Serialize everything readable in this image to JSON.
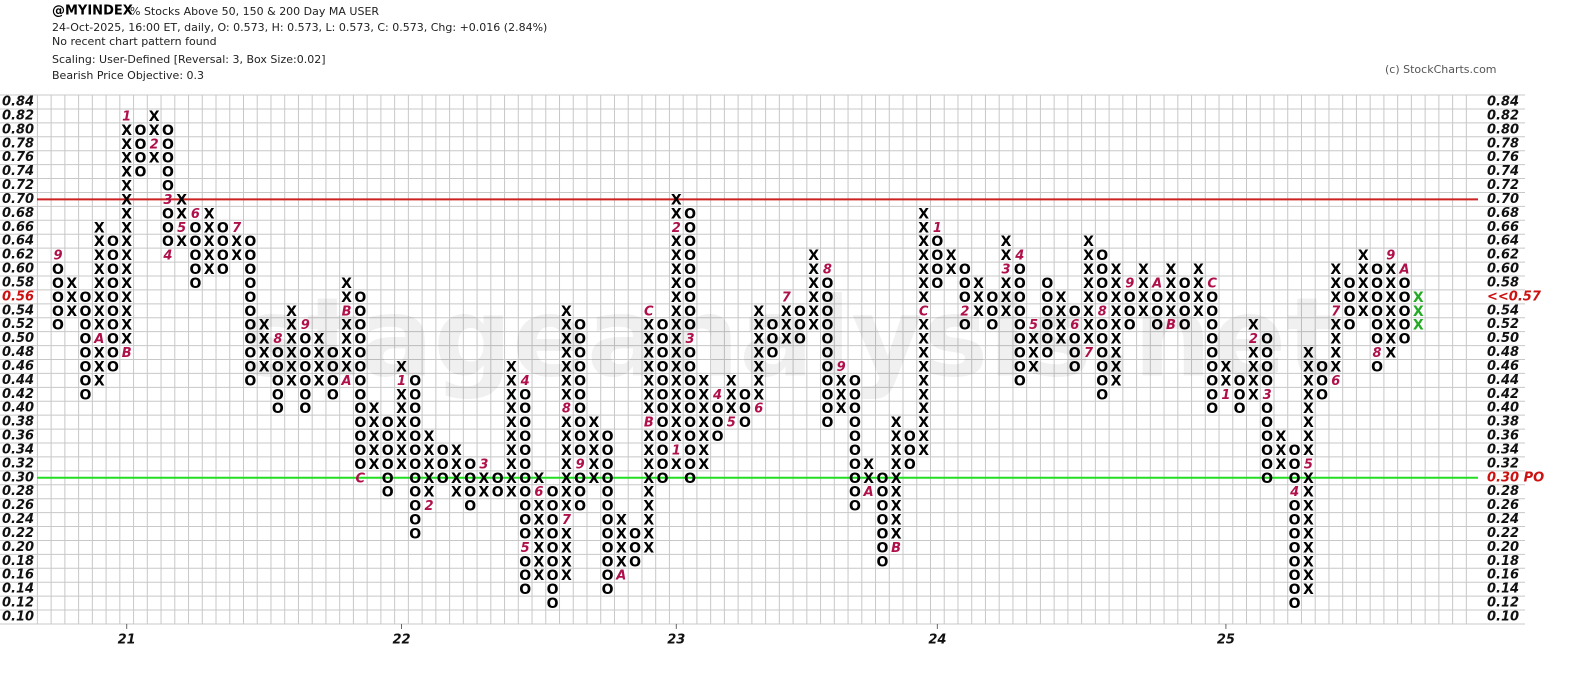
{
  "header": {
    "symbol": "@MYINDEX",
    "name": "% Stocks Above 50, 150 & 200 Day MA  USER",
    "quote": "24-Oct-2025, 16:00 ET, daily, O: 0.573, H: 0.573, L: 0.573, C: 0.573, Chg: +0.016 (2.84%)",
    "pattern": "No recent chart pattern found",
    "scaling": "Scaling: User-Defined [Reversal: 3, Box Size:0.02]",
    "objective": "Bearish Price Objective: 0.3",
    "copyright": "(c) StockCharts.com"
  },
  "chart_data": {
    "type": "pnf",
    "watermark": "stageanalysis.net",
    "ylim": [
      0.1,
      0.84
    ],
    "yticks": [
      {
        "value": 0.1,
        "label": "0.10"
      },
      {
        "value": 0.12,
        "label": "0.12"
      },
      {
        "value": 0.14,
        "label": "0.14"
      },
      {
        "value": 0.16,
        "label": "0.16"
      },
      {
        "value": 0.18,
        "label": "0.18"
      },
      {
        "value": 0.2,
        "label": "0.20"
      },
      {
        "value": 0.22,
        "label": "0.22"
      },
      {
        "value": 0.24,
        "label": "0.24"
      },
      {
        "value": 0.26,
        "label": "0.26"
      },
      {
        "value": 0.28,
        "label": "0.28"
      },
      {
        "value": 0.3,
        "label": "0.30"
      },
      {
        "value": 0.32,
        "label": "0.32"
      },
      {
        "value": 0.34,
        "label": "0.34"
      },
      {
        "value": 0.36,
        "label": "0.36"
      },
      {
        "value": 0.38,
        "label": "0.38"
      },
      {
        "value": 0.4,
        "label": "0.40"
      },
      {
        "value": 0.42,
        "label": "0.42"
      },
      {
        "value": 0.44,
        "label": "0.44"
      },
      {
        "value": 0.46,
        "label": "0.46"
      },
      {
        "value": 0.48,
        "label": "0.48"
      },
      {
        "value": 0.5,
        "label": "0.50"
      },
      {
        "value": 0.52,
        "label": "0.52"
      },
      {
        "value": 0.54,
        "label": "0.54"
      },
      {
        "value": 0.56,
        "label": "0.56"
      },
      {
        "value": 0.58,
        "label": "0.58"
      },
      {
        "value": 0.6,
        "label": "0.60"
      },
      {
        "value": 0.62,
        "label": "0.62"
      },
      {
        "value": 0.64,
        "label": "0.64"
      },
      {
        "value": 0.66,
        "label": "0.66"
      },
      {
        "value": 0.68,
        "label": "0.68"
      },
      {
        "value": 0.7,
        "label": "0.70"
      },
      {
        "value": 0.72,
        "label": "0.72"
      },
      {
        "value": 0.74,
        "label": "0.74"
      },
      {
        "value": 0.76,
        "label": "0.76"
      },
      {
        "value": 0.78,
        "label": "0.78"
      },
      {
        "value": 0.8,
        "label": "0.80"
      },
      {
        "value": 0.82,
        "label": "0.82"
      },
      {
        "value": 0.84,
        "label": "0.84"
      }
    ],
    "current": {
      "value": 0.56,
      "label": "<<0.57",
      "color": "#cc1111"
    },
    "reference_lines": [
      {
        "value": 0.7,
        "color": "#cc2222"
      },
      {
        "value": 0.3,
        "color": "#22dd22",
        "label": "0.30 PO",
        "label_color": "#cc1111"
      }
    ],
    "x_labels": [
      {
        "column": 5,
        "label": "21"
      },
      {
        "column": 25,
        "label": "22"
      },
      {
        "column": 45,
        "label": "23"
      },
      {
        "column": 64,
        "label": "24"
      },
      {
        "column": 85,
        "label": "25"
      }
    ],
    "columns": [
      {
        "type": "O",
        "low": 0.52,
        "high": 0.62,
        "marks": [
          {
            "at": 0.62,
            "label": "9"
          }
        ]
      },
      {
        "type": "X",
        "low": 0.54,
        "high": 0.58
      },
      {
        "type": "O",
        "low": 0.42,
        "high": 0.56
      },
      {
        "type": "X",
        "low": 0.44,
        "high": 0.66,
        "marks": [
          {
            "at": 0.5,
            "label": "A"
          }
        ]
      },
      {
        "type": "O",
        "low": 0.46,
        "high": 0.64
      },
      {
        "type": "X",
        "low": 0.48,
        "high": 0.82,
        "marks": [
          {
            "at": 0.48,
            "label": "B"
          },
          {
            "at": 0.82,
            "label": "1"
          }
        ]
      },
      {
        "type": "O",
        "low": 0.74,
        "high": 0.8
      },
      {
        "type": "X",
        "low": 0.76,
        "high": 0.82,
        "marks": [
          {
            "at": 0.78,
            "label": "2"
          }
        ]
      },
      {
        "type": "O",
        "low": 0.62,
        "high": 0.8,
        "marks": [
          {
            "at": 0.7,
            "label": "3"
          },
          {
            "at": 0.62,
            "label": "4"
          }
        ]
      },
      {
        "type": "X",
        "low": 0.64,
        "high": 0.7,
        "marks": [
          {
            "at": 0.66,
            "label": "5"
          }
        ]
      },
      {
        "type": "O",
        "low": 0.58,
        "high": 0.68,
        "marks": [
          {
            "at": 0.68,
            "label": "6"
          }
        ]
      },
      {
        "type": "X",
        "low": 0.6,
        "high": 0.68
      },
      {
        "type": "O",
        "low": 0.6,
        "high": 0.66
      },
      {
        "type": "X",
        "low": 0.62,
        "high": 0.66,
        "marks": [
          {
            "at": 0.66,
            "label": "7"
          }
        ]
      },
      {
        "type": "O",
        "low": 0.44,
        "high": 0.64
      },
      {
        "type": "X",
        "low": 0.46,
        "high": 0.52
      },
      {
        "type": "O",
        "low": 0.4,
        "high": 0.5,
        "marks": [
          {
            "at": 0.5,
            "label": "8"
          }
        ]
      },
      {
        "type": "X",
        "low": 0.44,
        "high": 0.54
      },
      {
        "type": "O",
        "low": 0.4,
        "high": 0.52,
        "marks": [
          {
            "at": 0.52,
            "label": "9"
          }
        ]
      },
      {
        "type": "X",
        "low": 0.44,
        "high": 0.5
      },
      {
        "type": "O",
        "low": 0.42,
        "high": 0.48
      },
      {
        "type": "X",
        "low": 0.44,
        "high": 0.58,
        "marks": [
          {
            "at": 0.44,
            "label": "A"
          },
          {
            "at": 0.54,
            "label": "B"
          }
        ]
      },
      {
        "type": "O",
        "low": 0.3,
        "high": 0.56,
        "marks": [
          {
            "at": 0.3,
            "label": "C"
          }
        ]
      },
      {
        "type": "X",
        "low": 0.32,
        "high": 0.4
      },
      {
        "type": "O",
        "low": 0.28,
        "high": 0.38
      },
      {
        "type": "X",
        "low": 0.32,
        "high": 0.46,
        "marks": [
          {
            "at": 0.44,
            "label": "1"
          }
        ]
      },
      {
        "type": "O",
        "low": 0.22,
        "high": 0.44
      },
      {
        "type": "X",
        "low": 0.26,
        "high": 0.36,
        "marks": [
          {
            "at": 0.26,
            "label": "2"
          }
        ]
      },
      {
        "type": "O",
        "low": 0.3,
        "high": 0.34
      },
      {
        "type": "X",
        "low": 0.28,
        "high": 0.34
      },
      {
        "type": "O",
        "low": 0.26,
        "high": 0.32
      },
      {
        "type": "X",
        "low": 0.28,
        "high": 0.32,
        "marks": [
          {
            "at": 0.32,
            "label": "3"
          }
        ]
      },
      {
        "type": "O",
        "low": 0.28,
        "high": 0.3
      },
      {
        "type": "X",
        "low": 0.28,
        "high": 0.46
      },
      {
        "type": "O",
        "low": 0.14,
        "high": 0.44,
        "marks": [
          {
            "at": 0.44,
            "label": "4"
          },
          {
            "at": 0.2,
            "label": "5"
          }
        ]
      },
      {
        "type": "X",
        "low": 0.16,
        "high": 0.3,
        "marks": [
          {
            "at": 0.28,
            "label": "6"
          }
        ]
      },
      {
        "type": "O",
        "low": 0.12,
        "high": 0.28
      },
      {
        "type": "X",
        "low": 0.16,
        "high": 0.54,
        "marks": [
          {
            "at": 0.24,
            "label": "7"
          },
          {
            "at": 0.4,
            "label": "8"
          }
        ]
      },
      {
        "type": "O",
        "low": 0.26,
        "high": 0.52,
        "marks": [
          {
            "at": 0.32,
            "label": "9"
          }
        ]
      },
      {
        "type": "X",
        "low": 0.3,
        "high": 0.38
      },
      {
        "type": "O",
        "low": 0.14,
        "high": 0.36
      },
      {
        "type": "X",
        "low": 0.16,
        "high": 0.24,
        "marks": [
          {
            "at": 0.16,
            "label": "A"
          }
        ]
      },
      {
        "type": "O",
        "low": 0.18,
        "high": 0.22
      },
      {
        "type": "X",
        "low": 0.2,
        "high": 0.54,
        "marks": [
          {
            "at": 0.38,
            "label": "B"
          },
          {
            "at": 0.54,
            "label": "C"
          }
        ]
      },
      {
        "type": "O",
        "low": 0.3,
        "high": 0.52
      },
      {
        "type": "X",
        "low": 0.32,
        "high": 0.7,
        "marks": [
          {
            "at": 0.34,
            "label": "1"
          },
          {
            "at": 0.66,
            "label": "2"
          }
        ]
      },
      {
        "type": "O",
        "low": 0.3,
        "high": 0.68,
        "marks": [
          {
            "at": 0.5,
            "label": "3"
          }
        ]
      },
      {
        "type": "X",
        "low": 0.32,
        "high": 0.44
      },
      {
        "type": "O",
        "low": 0.36,
        "high": 0.42,
        "marks": [
          {
            "at": 0.42,
            "label": "4"
          }
        ]
      },
      {
        "type": "X",
        "low": 0.38,
        "high": 0.44,
        "marks": [
          {
            "at": 0.38,
            "label": "5"
          }
        ]
      },
      {
        "type": "O",
        "low": 0.38,
        "high": 0.42
      },
      {
        "type": "X",
        "low": 0.4,
        "high": 0.54,
        "marks": [
          {
            "at": 0.4,
            "label": "6"
          }
        ]
      },
      {
        "type": "O",
        "low": 0.48,
        "high": 0.52
      },
      {
        "type": "X",
        "low": 0.5,
        "high": 0.56,
        "marks": [
          {
            "at": 0.56,
            "label": "7"
          }
        ]
      },
      {
        "type": "O",
        "low": 0.5,
        "high": 0.54
      },
      {
        "type": "X",
        "low": 0.52,
        "high": 0.62
      },
      {
        "type": "O",
        "low": 0.38,
        "high": 0.6,
        "marks": [
          {
            "at": 0.6,
            "label": "8"
          }
        ]
      },
      {
        "type": "X",
        "low": 0.4,
        "high": 0.46,
        "marks": [
          {
            "at": 0.46,
            "label": "9"
          }
        ]
      },
      {
        "type": "O",
        "low": 0.26,
        "high": 0.44
      },
      {
        "type": "X",
        "low": 0.28,
        "high": 0.32,
        "marks": [
          {
            "at": 0.28,
            "label": "A"
          }
        ]
      },
      {
        "type": "O",
        "low": 0.18,
        "high": 0.3
      },
      {
        "type": "X",
        "low": 0.2,
        "high": 0.38,
        "marks": [
          {
            "at": 0.2,
            "label": "B"
          }
        ]
      },
      {
        "type": "O",
        "low": 0.32,
        "high": 0.36
      },
      {
        "type": "X",
        "low": 0.34,
        "high": 0.68,
        "marks": [
          {
            "at": 0.54,
            "label": "C"
          }
        ]
      },
      {
        "type": "O",
        "low": 0.58,
        "high": 0.66,
        "marks": [
          {
            "at": 0.66,
            "label": "1"
          }
        ]
      },
      {
        "type": "X",
        "low": 0.6,
        "high": 0.62
      },
      {
        "type": "O",
        "low": 0.52,
        "high": 0.6,
        "marks": [
          {
            "at": 0.54,
            "label": "2"
          }
        ]
      },
      {
        "type": "X",
        "low": 0.54,
        "high": 0.58
      },
      {
        "type": "O",
        "low": 0.52,
        "high": 0.56
      },
      {
        "type": "X",
        "low": 0.54,
        "high": 0.64,
        "marks": [
          {
            "at": 0.6,
            "label": "3"
          }
        ]
      },
      {
        "type": "O",
        "low": 0.44,
        "high": 0.62,
        "marks": [
          {
            "at": 0.62,
            "label": "4"
          }
        ]
      },
      {
        "type": "X",
        "low": 0.46,
        "high": 0.52,
        "marks": [
          {
            "at": 0.52,
            "label": "5"
          }
        ]
      },
      {
        "type": "O",
        "low": 0.48,
        "high": 0.58
      },
      {
        "type": "X",
        "low": 0.5,
        "high": 0.56
      },
      {
        "type": "O",
        "low": 0.46,
        "high": 0.54,
        "marks": [
          {
            "at": 0.52,
            "label": "6"
          }
        ]
      },
      {
        "type": "X",
        "low": 0.48,
        "high": 0.64,
        "marks": [
          {
            "at": 0.48,
            "label": "7"
          }
        ]
      },
      {
        "type": "O",
        "low": 0.42,
        "high": 0.62,
        "marks": [
          {
            "at": 0.54,
            "label": "8"
          }
        ]
      },
      {
        "type": "X",
        "low": 0.44,
        "high": 0.6
      },
      {
        "type": "O",
        "low": 0.52,
        "high": 0.58,
        "marks": [
          {
            "at": 0.58,
            "label": "9"
          }
        ]
      },
      {
        "type": "X",
        "low": 0.54,
        "high": 0.6
      },
      {
        "type": "O",
        "low": 0.52,
        "high": 0.58,
        "marks": [
          {
            "at": 0.58,
            "label": "A"
          }
        ]
      },
      {
        "type": "X",
        "low": 0.52,
        "high": 0.6,
        "marks": [
          {
            "at": 0.52,
            "label": "B"
          }
        ]
      },
      {
        "type": "O",
        "low": 0.52,
        "high": 0.58
      },
      {
        "type": "X",
        "low": 0.54,
        "high": 0.6
      },
      {
        "type": "O",
        "low": 0.4,
        "high": 0.58,
        "marks": [
          {
            "at": 0.58,
            "label": "C"
          }
        ]
      },
      {
        "type": "X",
        "low": 0.42,
        "high": 0.46,
        "marks": [
          {
            "at": 0.42,
            "label": "1"
          }
        ]
      },
      {
        "type": "O",
        "low": 0.4,
        "high": 0.44
      },
      {
        "type": "X",
        "low": 0.42,
        "high": 0.52,
        "marks": [
          {
            "at": 0.5,
            "label": "2"
          }
        ]
      },
      {
        "type": "O",
        "low": 0.3,
        "high": 0.5,
        "marks": [
          {
            "at": 0.42,
            "label": "3"
          }
        ]
      },
      {
        "type": "X",
        "low": 0.32,
        "high": 0.36
      },
      {
        "type": "O",
        "low": 0.12,
        "high": 0.34,
        "marks": [
          {
            "at": 0.28,
            "label": "4"
          }
        ]
      },
      {
        "type": "X",
        "low": 0.14,
        "high": 0.48,
        "marks": [
          {
            "at": 0.32,
            "label": "5"
          }
        ]
      },
      {
        "type": "O",
        "low": 0.42,
        "high": 0.46
      },
      {
        "type": "X",
        "low": 0.44,
        "high": 0.6,
        "marks": [
          {
            "at": 0.44,
            "label": "6"
          },
          {
            "at": 0.54,
            "label": "7"
          }
        ]
      },
      {
        "type": "O",
        "low": 0.52,
        "high": 0.58
      },
      {
        "type": "X",
        "low": 0.54,
        "high": 0.62
      },
      {
        "type": "O",
        "low": 0.46,
        "high": 0.6,
        "marks": [
          {
            "at": 0.48,
            "label": "8"
          }
        ]
      },
      {
        "type": "X",
        "low": 0.48,
        "high": 0.62,
        "marks": [
          {
            "at": 0.62,
            "label": "9"
          }
        ]
      },
      {
        "type": "O",
        "low": 0.5,
        "high": 0.6,
        "marks": [
          {
            "at": 0.6,
            "label": "A"
          }
        ]
      },
      {
        "type": "X",
        "low": 0.52,
        "high": 0.56,
        "color": "#22aa22"
      }
    ]
  }
}
